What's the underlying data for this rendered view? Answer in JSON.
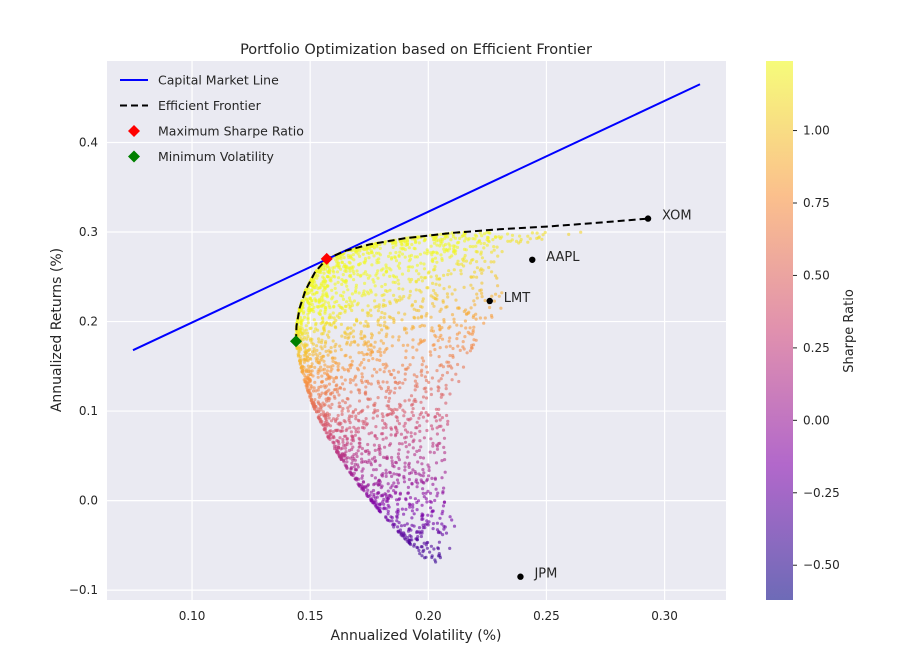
{
  "chart_data": {
    "type": "scatter",
    "title": "Portfolio Optimization based on Efficient Frontier",
    "xlabel": "Annualized Volatility (%)",
    "ylabel": "Annualized Returns (%)",
    "xlim": [
      0.064,
      0.326
    ],
    "ylim": [
      -0.111,
      0.491
    ],
    "xticks": [
      0.1,
      0.15,
      0.2,
      0.25,
      0.3
    ],
    "xtick_labels": [
      "0.10",
      "0.15",
      "0.20",
      "0.25",
      "0.30"
    ],
    "yticks": [
      -0.1,
      0.0,
      0.1,
      0.2,
      0.3,
      0.4
    ],
    "ytick_labels": [
      "−0.1",
      "0.0",
      "0.1",
      "0.2",
      "0.3",
      "0.4"
    ],
    "grid": true,
    "legend_position": "top-left",
    "legend": [
      {
        "label": "Capital Market Line",
        "style": "line",
        "color": "#0000ff"
      },
      {
        "label": "Efficient Frontier",
        "style": "dashed",
        "color": "#000000"
      },
      {
        "label": "Maximum Sharpe Ratio",
        "style": "diamond",
        "color": "#ff0000"
      },
      {
        "label": "Minimum Volatility",
        "style": "diamond",
        "color": "#008000"
      }
    ],
    "capital_market_line": {
      "x": [
        0.075,
        0.315
      ],
      "y": [
        0.168,
        0.465
      ]
    },
    "efficient_frontier": {
      "x": [
        0.144,
        0.1442,
        0.1455,
        0.148,
        0.152,
        0.157,
        0.165,
        0.175,
        0.19,
        0.21,
        0.23,
        0.25,
        0.27,
        0.293
      ],
      "y": [
        0.178,
        0.195,
        0.215,
        0.235,
        0.255,
        0.27,
        0.279,
        0.286,
        0.293,
        0.299,
        0.303,
        0.306,
        0.31,
        0.315
      ]
    },
    "max_sharpe": {
      "x": 0.157,
      "y": 0.27
    },
    "min_volatility": {
      "x": 0.144,
      "y": 0.178
    },
    "assets": [
      {
        "name": "XOM",
        "x": 0.293,
        "y": 0.315
      },
      {
        "name": "AAPL",
        "x": 0.244,
        "y": 0.269
      },
      {
        "name": "LMT",
        "x": 0.226,
        "y": 0.223
      },
      {
        "name": "JPM",
        "x": 0.239,
        "y": -0.085
      }
    ],
    "random_portfolios": {
      "count": 2500,
      "color_metric": "Sharpe Ratio",
      "sharpe_range": [
        -0.62,
        1.24
      ],
      "colormap": "plasma"
    },
    "colorbar": {
      "label": "Sharpe Ratio",
      "ticks": [
        -0.5,
        -0.25,
        0.0,
        0.25,
        0.5,
        0.75,
        1.0
      ],
      "tick_labels": [
        "−0.50",
        "−0.25",
        "0.00",
        "0.25",
        "0.50",
        "0.75",
        "1.00"
      ],
      "range": [
        -0.62,
        1.24
      ]
    }
  }
}
